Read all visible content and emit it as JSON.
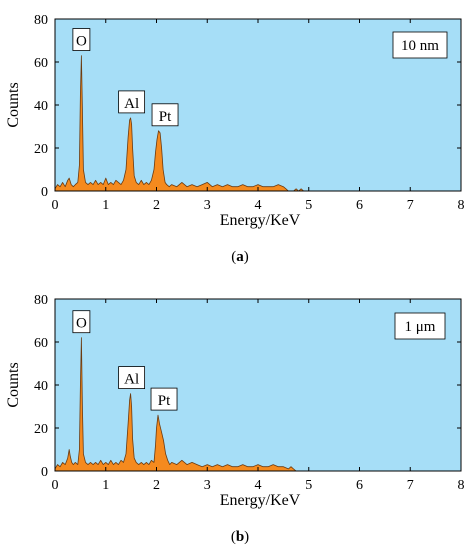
{
  "colors": {
    "plot_background": "#a6def7",
    "spectrum_fill": "#f58a1e",
    "spectrum_stroke": "#6b3a10",
    "axis": "#000000",
    "label_box_fill": "#ffffff"
  },
  "chart_data": [
    {
      "type": "area",
      "panel_caption": "a",
      "sample_label": "10 nm",
      "xlabel": "Energy/KeV",
      "ylabel": "Counts",
      "xlim": [
        0,
        8
      ],
      "ylim": [
        0,
        80
      ],
      "x_ticks": [
        0,
        1,
        2,
        3,
        4,
        5,
        6,
        7,
        8
      ],
      "y_ticks": [
        0,
        20,
        40,
        60,
        80
      ],
      "grid": false,
      "peaks": [
        {
          "label": "O",
          "energy": 0.52,
          "counts": 63
        },
        {
          "label": "Al",
          "energy": 1.49,
          "counts": 34
        },
        {
          "label": "Pt",
          "energy": 2.05,
          "counts": 28
        }
      ],
      "series": [
        {
          "x": [
            0.0,
            0.05,
            0.1,
            0.15,
            0.2,
            0.25,
            0.28,
            0.32,
            0.36,
            0.4,
            0.45,
            0.48,
            0.5,
            0.52,
            0.54,
            0.56,
            0.6,
            0.65,
            0.7,
            0.75,
            0.8,
            0.85,
            0.9,
            0.95,
            1.0,
            1.05,
            1.1,
            1.15,
            1.2,
            1.25,
            1.3,
            1.35,
            1.4,
            1.44,
            1.47,
            1.49,
            1.51,
            1.53,
            1.56,
            1.6,
            1.65,
            1.7,
            1.75,
            1.8,
            1.85,
            1.9,
            1.95,
            1.98,
            2.01,
            2.04,
            2.07,
            2.1,
            2.13,
            2.17,
            2.2,
            2.25,
            2.3,
            2.4,
            2.5,
            2.6,
            2.7,
            2.8,
            2.9,
            3.0,
            3.1,
            3.2,
            3.3,
            3.4,
            3.5,
            3.6,
            3.7,
            3.8,
            3.9,
            4.0,
            4.1,
            4.2,
            4.3,
            4.4,
            4.5,
            4.55,
            4.6,
            4.7,
            4.75,
            4.8,
            4.85,
            4.9
          ],
          "y": [
            1,
            3,
            2,
            4,
            2,
            5,
            6,
            3,
            2,
            3,
            4,
            12,
            45,
            63,
            38,
            10,
            4,
            3,
            4,
            3,
            5,
            3,
            4,
            3,
            6,
            3,
            4,
            3,
            5,
            4,
            3,
            5,
            10,
            25,
            33,
            34,
            31,
            20,
            7,
            4,
            3,
            5,
            3,
            4,
            3,
            5,
            10,
            18,
            24,
            28,
            27,
            20,
            10,
            4,
            3,
            2,
            3,
            2,
            4,
            2,
            3,
            2,
            3,
            4,
            2,
            3,
            2,
            3,
            2,
            2,
            3,
            2,
            2,
            3,
            2,
            2,
            2,
            3,
            2,
            1,
            0,
            0,
            1,
            0,
            1,
            0
          ]
        }
      ]
    },
    {
      "type": "area",
      "panel_caption": "b",
      "sample_label": "1 μm",
      "xlabel": "Energy/KeV",
      "ylabel": "Counts",
      "xlim": [
        0,
        8
      ],
      "ylim": [
        0,
        80
      ],
      "x_ticks": [
        0,
        1,
        2,
        3,
        4,
        5,
        6,
        7,
        8
      ],
      "y_ticks": [
        0,
        20,
        40,
        60,
        80
      ],
      "grid": false,
      "peaks": [
        {
          "label": "O",
          "energy": 0.52,
          "counts": 62
        },
        {
          "label": "Al",
          "energy": 1.49,
          "counts": 36
        },
        {
          "label": "Pt",
          "energy": 2.03,
          "counts": 26
        }
      ],
      "series": [
        {
          "x": [
            0.0,
            0.05,
            0.1,
            0.15,
            0.2,
            0.25,
            0.28,
            0.3,
            0.33,
            0.36,
            0.4,
            0.45,
            0.48,
            0.5,
            0.52,
            0.54,
            0.56,
            0.6,
            0.65,
            0.7,
            0.75,
            0.8,
            0.85,
            0.9,
            0.95,
            1.0,
            1.05,
            1.1,
            1.15,
            1.2,
            1.25,
            1.3,
            1.35,
            1.4,
            1.44,
            1.47,
            1.49,
            1.51,
            1.53,
            1.56,
            1.6,
            1.65,
            1.7,
            1.75,
            1.8,
            1.85,
            1.9,
            1.95,
            1.98,
            2.0,
            2.03,
            2.06,
            2.1,
            2.14,
            2.18,
            2.22,
            2.26,
            2.3,
            2.4,
            2.5,
            2.6,
            2.7,
            2.8,
            2.9,
            3.0,
            3.1,
            3.2,
            3.3,
            3.4,
            3.5,
            3.6,
            3.7,
            3.8,
            3.9,
            4.0,
            4.1,
            4.2,
            4.3,
            4.4,
            4.5,
            4.6,
            4.65,
            4.7,
            4.75,
            4.8
          ],
          "y": [
            1,
            3,
            2,
            4,
            3,
            6,
            10,
            7,
            4,
            3,
            4,
            3,
            10,
            40,
            62,
            30,
            8,
            4,
            3,
            4,
            3,
            4,
            3,
            5,
            3,
            4,
            3,
            5,
            3,
            4,
            3,
            5,
            4,
            8,
            22,
            33,
            36,
            30,
            15,
            6,
            4,
            3,
            4,
            3,
            4,
            3,
            5,
            4,
            12,
            20,
            26,
            22,
            18,
            14,
            8,
            5,
            3,
            4,
            3,
            5,
            3,
            4,
            3,
            2,
            3,
            2,
            3,
            2,
            3,
            2,
            2,
            3,
            2,
            2,
            3,
            2,
            2,
            3,
            2,
            2,
            1,
            2,
            1,
            0,
            0
          ]
        }
      ]
    }
  ]
}
